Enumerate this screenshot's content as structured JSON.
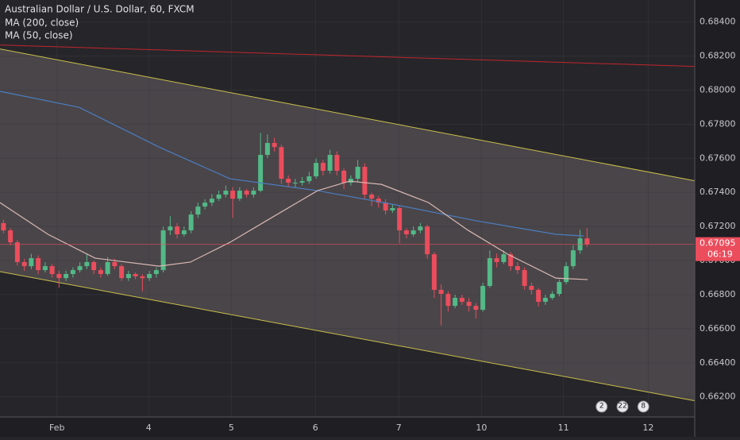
{
  "chart_data": {
    "type": "candlestick",
    "title": "Australian Dollar / U.S. Dollar, 60, FXCM",
    "up_color": "#53b987",
    "down_color": "#eb4d5c",
    "xlim": [
      0,
      100
    ],
    "ylim": [
      0.66082,
      0.68529
    ],
    "xticks": [
      {
        "value": 8.2,
        "label": "Feb"
      },
      {
        "value": 21.4,
        "label": "4"
      },
      {
        "value": 33.3,
        "label": "5"
      },
      {
        "value": 45.4,
        "label": "6"
      },
      {
        "value": 57.4,
        "label": "7"
      },
      {
        "value": 69.3,
        "label": "10"
      },
      {
        "value": 81.1,
        "label": "11"
      },
      {
        "value": 93.3,
        "label": "12"
      }
    ],
    "yticks": [
      {
        "value": 0.684,
        "label": "0.68400"
      },
      {
        "value": 0.682,
        "label": "0.68200"
      },
      {
        "value": 0.68,
        "label": "0.68000"
      },
      {
        "value": 0.678,
        "label": "0.67800"
      },
      {
        "value": 0.676,
        "label": "0.67600"
      },
      {
        "value": 0.674,
        "label": "0.67400"
      },
      {
        "value": 0.672,
        "label": "0.67200"
      },
      {
        "value": 0.67,
        "label": "0.67000"
      },
      {
        "value": 0.668,
        "label": "0.66800"
      },
      {
        "value": 0.666,
        "label": "0.66600"
      },
      {
        "value": 0.664,
        "label": "0.66400"
      },
      {
        "value": 0.662,
        "label": "0.66200"
      }
    ],
    "ohlc": [
      [
        0.6722,
        0.6724,
        0.6716,
        0.67177
      ],
      [
        0.67177,
        0.6719,
        0.6709,
        0.67107
      ],
      [
        0.67107,
        0.6712,
        0.6697,
        0.66991
      ],
      [
        0.66991,
        0.6701,
        0.6694,
        0.66967
      ],
      [
        0.66967,
        0.6704,
        0.6695,
        0.67014
      ],
      [
        0.67014,
        0.6703,
        0.6692,
        0.66944
      ],
      [
        0.66944,
        0.6699,
        0.6693,
        0.66967
      ],
      [
        0.66967,
        0.6698,
        0.669,
        0.66921
      ],
      [
        0.66921,
        0.6694,
        0.6684,
        0.66897
      ],
      [
        0.66897,
        0.6694,
        0.6688,
        0.66921
      ],
      [
        0.66921,
        0.6696,
        0.669,
        0.66944
      ],
      [
        0.66944,
        0.6699,
        0.6693,
        0.66967
      ],
      [
        0.66967,
        0.6704,
        0.6695,
        0.66991
      ],
      [
        0.66991,
        0.67,
        0.6692,
        0.66944
      ],
      [
        0.66944,
        0.6696,
        0.669,
        0.66921
      ],
      [
        0.66921,
        0.6702,
        0.6691,
        0.66991
      ],
      [
        0.66991,
        0.6701,
        0.6695,
        0.66967
      ],
      [
        0.66967,
        0.6698,
        0.6688,
        0.66897
      ],
      [
        0.66897,
        0.6694,
        0.6688,
        0.66921
      ],
      [
        0.66921,
        0.6693,
        0.6689,
        0.66907
      ],
      [
        0.66907,
        0.6692,
        0.6682,
        0.66897
      ],
      [
        0.66897,
        0.6694,
        0.6688,
        0.66921
      ],
      [
        0.66921,
        0.6696,
        0.669,
        0.66944
      ],
      [
        0.66944,
        0.672,
        0.6693,
        0.67177
      ],
      [
        0.67177,
        0.6726,
        0.6715,
        0.672
      ],
      [
        0.672,
        0.6722,
        0.6713,
        0.67154
      ],
      [
        0.67154,
        0.672,
        0.6714,
        0.67177
      ],
      [
        0.67177,
        0.6729,
        0.6716,
        0.6727
      ],
      [
        0.6727,
        0.6734,
        0.6725,
        0.67317
      ],
      [
        0.67317,
        0.6736,
        0.673,
        0.6734
      ],
      [
        0.6734,
        0.6739,
        0.6732,
        0.67363
      ],
      [
        0.67363,
        0.6741,
        0.6735,
        0.67387
      ],
      [
        0.67387,
        0.6744,
        0.6737,
        0.6741
      ],
      [
        0.6741,
        0.6743,
        0.6725,
        0.67363
      ],
      [
        0.67363,
        0.6743,
        0.6735,
        0.6741
      ],
      [
        0.6741,
        0.6742,
        0.6737,
        0.67387
      ],
      [
        0.67387,
        0.6743,
        0.6737,
        0.6741
      ],
      [
        0.6741,
        0.6775,
        0.674,
        0.6762
      ],
      [
        0.6762,
        0.6774,
        0.676,
        0.6769
      ],
      [
        0.6769,
        0.6772,
        0.6764,
        0.67666
      ],
      [
        0.67666,
        0.6768,
        0.6745,
        0.6748
      ],
      [
        0.6748,
        0.675,
        0.6743,
        0.67457
      ],
      [
        0.67457,
        0.6748,
        0.6743,
        0.67457
      ],
      [
        0.67457,
        0.6749,
        0.6744,
        0.67466
      ],
      [
        0.67466,
        0.6752,
        0.6745,
        0.67494
      ],
      [
        0.67494,
        0.676,
        0.6748,
        0.67573
      ],
      [
        0.67573,
        0.6759,
        0.675,
        0.67527
      ],
      [
        0.67527,
        0.6765,
        0.6751,
        0.6762
      ],
      [
        0.6762,
        0.6764,
        0.675,
        0.67527
      ],
      [
        0.67527,
        0.6754,
        0.6742,
        0.67457
      ],
      [
        0.67457,
        0.675,
        0.6744,
        0.6748
      ],
      [
        0.6748,
        0.6759,
        0.6746,
        0.6755
      ],
      [
        0.6755,
        0.6757,
        0.6736,
        0.67387
      ],
      [
        0.67387,
        0.674,
        0.6732,
        0.67363
      ],
      [
        0.67363,
        0.6738,
        0.6731,
        0.6734
      ],
      [
        0.6734,
        0.6736,
        0.6727,
        0.67294
      ],
      [
        0.67294,
        0.6733,
        0.6728,
        0.67308
      ],
      [
        0.67308,
        0.6732,
        0.671,
        0.67177
      ],
      [
        0.67177,
        0.6719,
        0.6713,
        0.67154
      ],
      [
        0.67154,
        0.672,
        0.6714,
        0.67177
      ],
      [
        0.67177,
        0.6722,
        0.6716,
        0.672
      ],
      [
        0.672,
        0.6721,
        0.6701,
        0.67037
      ],
      [
        0.67037,
        0.6705,
        0.6678,
        0.66828
      ],
      [
        0.66828,
        0.6686,
        0.6662,
        0.66804
      ],
      [
        0.66804,
        0.6682,
        0.667,
        0.66734
      ],
      [
        0.66734,
        0.668,
        0.6672,
        0.66781
      ],
      [
        0.66781,
        0.668,
        0.6674,
        0.66758
      ],
      [
        0.66758,
        0.6678,
        0.667,
        0.66734
      ],
      [
        0.66734,
        0.6675,
        0.6666,
        0.66711
      ],
      [
        0.66711,
        0.6687,
        0.667,
        0.66851
      ],
      [
        0.66851,
        0.6706,
        0.6684,
        0.67014
      ],
      [
        0.67014,
        0.6704,
        0.6696,
        0.66991
      ],
      [
        0.66991,
        0.6706,
        0.6698,
        0.67037
      ],
      [
        0.67037,
        0.6705,
        0.6694,
        0.66967
      ],
      [
        0.66967,
        0.6699,
        0.6692,
        0.66944
      ],
      [
        0.66944,
        0.6696,
        0.6683,
        0.66851
      ],
      [
        0.66851,
        0.6687,
        0.668,
        0.66828
      ],
      [
        0.66828,
        0.6684,
        0.6673,
        0.66758
      ],
      [
        0.66758,
        0.668,
        0.6674,
        0.66781
      ],
      [
        0.66781,
        0.6682,
        0.6677,
        0.66804
      ],
      [
        0.66804,
        0.6689,
        0.6679,
        0.66874
      ],
      [
        0.66874,
        0.6699,
        0.6686,
        0.66967
      ],
      [
        0.66967,
        0.6709,
        0.6695,
        0.6706
      ],
      [
        0.6706,
        0.6718,
        0.6704,
        0.6713
      ],
      [
        0.6713,
        0.6719,
        0.6708,
        0.67095
      ]
    ],
    "series": [
      {
        "name": "MA (200, close)",
        "color": "#4a7ec0",
        "x": [
          0,
          11.4,
          22.9,
          33.1,
          45.7,
          57.1,
          68.6,
          80,
          84
        ],
        "values": [
          0.67993,
          0.67899,
          0.67666,
          0.6748,
          0.6741,
          0.67326,
          0.67233,
          0.67154,
          0.67144
        ]
      },
      {
        "name": "MA (50, close)",
        "color": "#d9b9b4",
        "x": [
          0,
          6.9,
          13.7,
          22.9,
          27.4,
          33.1,
          38.9,
          45.7,
          50.3,
          54.9,
          61.7,
          67.4,
          73.1,
          80,
          84.6
        ],
        "values": [
          0.6734,
          0.67154,
          0.67014,
          0.66967,
          0.66991,
          0.67107,
          0.67247,
          0.6741,
          0.67466,
          0.67447,
          0.6734,
          0.67177,
          0.67037,
          0.66897,
          0.66888
        ]
      }
    ],
    "drawings": [
      {
        "color": "#c9c04a",
        "x": [
          0,
          100
        ],
        "values": [
          0.68242,
          0.67468
        ]
      },
      {
        "color": "#c9c04a",
        "x": [
          0,
          100
        ],
        "values": [
          0.66935,
          0.66177
        ]
      },
      {
        "color": "#c0262c",
        "x": [
          0,
          100
        ],
        "values": [
          0.68265,
          0.68139
        ]
      }
    ],
    "channel_fill": "#4a4549",
    "last_price": {
      "value": 0.67095,
      "label": "0.67095"
    },
    "countdown": "06:19",
    "events": [
      {
        "x": 86.6,
        "label": "2"
      },
      {
        "x": 89.6,
        "label": "22"
      },
      {
        "x": 92.6,
        "label": "8"
      }
    ]
  }
}
